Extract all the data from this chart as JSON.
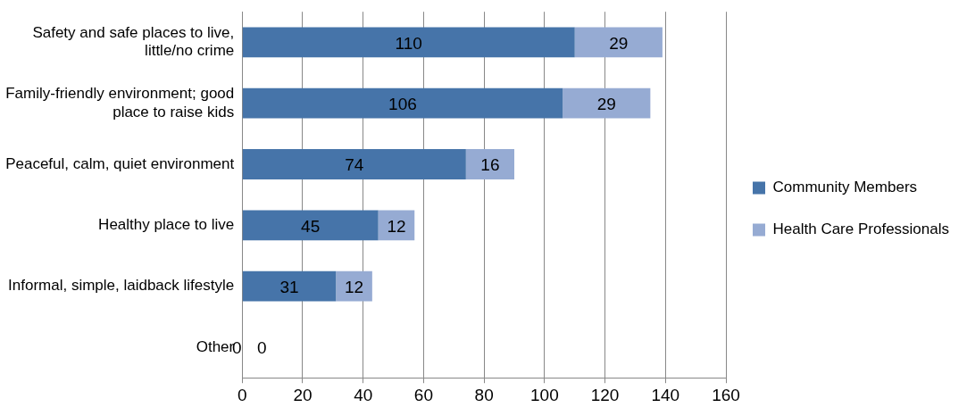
{
  "chart_data": {
    "type": "bar",
    "orientation": "horizontal",
    "stacked": true,
    "categories": [
      "Safety and safe places to live, little/no crime",
      "Family-friendly environment; good place to raise kids",
      "Peaceful, calm, quiet environment",
      "Healthy place to live",
      "Informal, simple, laidback lifestyle",
      "Other"
    ],
    "series": [
      {
        "name": "Community Members",
        "color": "#4674a9",
        "values": [
          110,
          106,
          74,
          45,
          31,
          0
        ]
      },
      {
        "name": "Health Care Professionals",
        "color": "#96abd3",
        "values": [
          29,
          29,
          16,
          12,
          12,
          0
        ]
      }
    ],
    "xlim": [
      0,
      160
    ],
    "xticks": [
      0,
      20,
      40,
      60,
      80,
      100,
      120,
      140,
      160
    ],
    "grid": "x",
    "legend": "right",
    "data_labels": true
  }
}
